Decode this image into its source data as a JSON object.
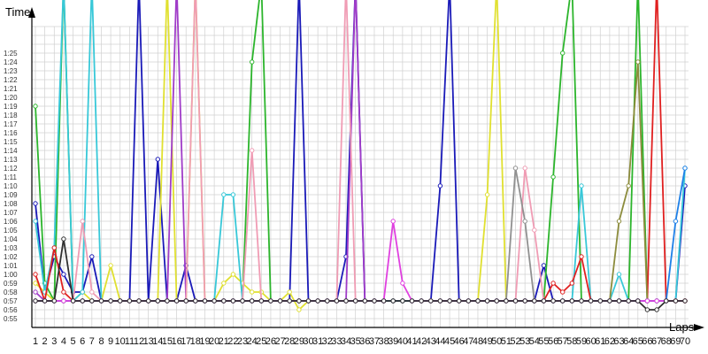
{
  "chart_data": {
    "type": "line",
    "y_axis_title": "Time",
    "x_axis_title": "Laps",
    "grid": true,
    "legend": "none",
    "y_ticks": [
      "0:55",
      "0:56",
      "0:57",
      "0:58",
      "0:59",
      "1:00",
      "1:01",
      "1:02",
      "1:03",
      "1:04",
      "1:05",
      "1:06",
      "1:07",
      "1:08",
      "1:09",
      "1:10",
      "1:11",
      "1:12",
      "1:13",
      "1:14",
      "1:15",
      "1:16",
      "1:17",
      "1:18",
      "1:19",
      "1:20",
      "1:21",
      "1:22",
      "1:23",
      "1:24",
      "1:25"
    ],
    "x_ticks": [
      "1",
      "2",
      "3",
      "4",
      "5",
      "6",
      "7",
      "8",
      "9",
      "10",
      "11",
      "12",
      "13",
      "14",
      "15",
      "16",
      "17",
      "18",
      "19",
      "20",
      "21",
      "22",
      "23",
      "24",
      "25",
      "26",
      "27",
      "28",
      "29",
      "30",
      "31",
      "32",
      "33",
      "34",
      "35",
      "36",
      "37",
      "38",
      "39",
      "40",
      "41",
      "42",
      "43",
      "44",
      "45",
      "46",
      "47",
      "48",
      "49",
      "50",
      "51",
      "52",
      "53",
      "54",
      "55",
      "56",
      "57",
      "58",
      "59",
      "60",
      "61",
      "62",
      "63",
      "64",
      "65",
      "66",
      "67",
      "68",
      "69",
      "70"
    ],
    "x_range": [
      1,
      70
    ],
    "y_range_seconds": [
      54,
      88
    ],
    "colors": {
      "grid": "#d0d0d0",
      "axis": "#000000",
      "series": [
        "#1a1ab8",
        "#2cb52c",
        "#e0e030",
        "#38c8d8",
        "#a03cc8",
        "#f09cb4",
        "#e02020",
        "#909090",
        "#8c8c3c",
        "#1e80e8",
        "#40c040",
        "#e040e0",
        "#303030",
        "#c87830"
      ]
    },
    "series": [
      {
        "color": "#1a1ab8",
        "values": [
          68,
          58,
          62,
          60,
          58,
          58,
          62,
          57,
          57,
          57,
          57,
          140,
          57,
          73,
          57,
          57,
          61,
          57,
          57,
          57,
          57,
          57,
          57,
          57,
          57,
          57,
          57,
          57,
          140,
          57,
          57,
          57,
          57,
          62,
          140,
          57,
          57,
          57,
          57,
          57,
          57,
          57,
          57,
          70,
          140,
          57,
          57,
          57,
          57,
          57,
          57,
          57,
          57,
          57,
          61,
          57,
          57,
          57,
          57,
          57,
          57,
          57,
          57,
          57,
          57,
          57,
          57,
          57,
          57,
          70
        ]
      },
      {
        "color": "#2cb52c",
        "values": [
          79,
          59,
          57,
          140,
          57,
          57,
          57,
          57,
          57,
          57,
          57,
          57,
          57,
          57,
          57,
          57,
          57,
          57,
          57,
          57,
          57,
          57,
          57,
          84,
          140,
          57,
          57,
          57,
          57,
          57,
          57,
          57,
          57,
          57,
          57,
          57,
          57,
          57,
          57,
          57,
          57,
          57,
          57,
          57,
          57,
          57,
          57,
          57,
          57,
          57,
          57,
          57,
          57,
          57,
          57,
          71,
          85,
          140,
          57,
          57,
          57,
          57,
          57,
          57,
          140,
          57,
          57,
          57,
          57,
          57
        ]
      },
      {
        "color": "#e0e030",
        "values": [
          59,
          58,
          57,
          57,
          57,
          58,
          57,
          57,
          61,
          57,
          57,
          57,
          57,
          57,
          140,
          57,
          57,
          140,
          57,
          57,
          59,
          60,
          59,
          58,
          58,
          57,
          57,
          58,
          56,
          57,
          57,
          57,
          57,
          57,
          57,
          57,
          57,
          57,
          57,
          57,
          57,
          57,
          57,
          57,
          57,
          57,
          57,
          57,
          69,
          140,
          57,
          57,
          57,
          57,
          57,
          57,
          57,
          57,
          57,
          57,
          57,
          57,
          57,
          57,
          57,
          57,
          57,
          57,
          57,
          57
        ]
      },
      {
        "color": "#38c8d8",
        "values": [
          66,
          58,
          63,
          140,
          57,
          58,
          140,
          57,
          57,
          57,
          57,
          57,
          57,
          57,
          57,
          57,
          57,
          57,
          57,
          57,
          69,
          69,
          57,
          57,
          57,
          57,
          57,
          57,
          57,
          57,
          57,
          57,
          57,
          57,
          57,
          57,
          57,
          57,
          57,
          57,
          57,
          57,
          57,
          57,
          57,
          57,
          57,
          57,
          57,
          57,
          57,
          57,
          57,
          57,
          57,
          57,
          57,
          57,
          70,
          57,
          57,
          57,
          60,
          57,
          57,
          57,
          57,
          57,
          57,
          72
        ]
      },
      {
        "color": "#a03cc8",
        "values": [
          58,
          57,
          57,
          57,
          57,
          57,
          57,
          57,
          57,
          57,
          57,
          57,
          57,
          57,
          57,
          140,
          57,
          57,
          57,
          57,
          57,
          57,
          57,
          57,
          57,
          57,
          57,
          57,
          57,
          57,
          57,
          57,
          57,
          57,
          140,
          57,
          57,
          57,
          57,
          57,
          57,
          57,
          57,
          57,
          57,
          57,
          57,
          57,
          57,
          57,
          57,
          57,
          57,
          57,
          57,
          57,
          57,
          57,
          57,
          57,
          57,
          57,
          57,
          57,
          57,
          57,
          57,
          57,
          57,
          57
        ]
      },
      {
        "color": "#f09cb4",
        "values": [
          57,
          57,
          57,
          57,
          57,
          66,
          58,
          57,
          57,
          57,
          57,
          57,
          57,
          57,
          57,
          57,
          57,
          140,
          57,
          57,
          57,
          57,
          57,
          74,
          57,
          57,
          57,
          57,
          57,
          57,
          57,
          57,
          57,
          140,
          57,
          57,
          57,
          57,
          57,
          57,
          57,
          57,
          57,
          57,
          57,
          57,
          57,
          57,
          57,
          57,
          57,
          57,
          72,
          65,
          57,
          57,
          57,
          57,
          57,
          57,
          57,
          57,
          57,
          57,
          57,
          57,
          57,
          57,
          57,
          57
        ]
      },
      {
        "color": "#e02020",
        "values": [
          60,
          57,
          63,
          58,
          57,
          57,
          57,
          57,
          57,
          57,
          57,
          57,
          57,
          57,
          57,
          57,
          57,
          57,
          57,
          57,
          57,
          57,
          57,
          57,
          57,
          57,
          57,
          57,
          57,
          57,
          57,
          57,
          57,
          57,
          57,
          57,
          57,
          57,
          57,
          57,
          57,
          57,
          57,
          57,
          57,
          57,
          57,
          57,
          57,
          57,
          57,
          57,
          57,
          57,
          57,
          59,
          58,
          59,
          62,
          57,
          57,
          57,
          57,
          57,
          57,
          57,
          140,
          57,
          57,
          57
        ]
      },
      {
        "color": "#909090",
        "values": [
          57,
          57,
          57,
          57,
          57,
          57,
          57,
          57,
          57,
          57,
          57,
          57,
          57,
          57,
          57,
          57,
          57,
          57,
          57,
          57,
          57,
          57,
          57,
          57,
          57,
          57,
          57,
          57,
          57,
          57,
          57,
          57,
          57,
          57,
          57,
          57,
          57,
          57,
          57,
          57,
          57,
          57,
          57,
          57,
          57,
          57,
          57,
          57,
          57,
          57,
          57,
          72,
          66,
          57,
          57,
          57,
          57,
          57,
          57,
          57,
          57,
          57,
          57,
          57,
          57,
          57,
          57,
          57,
          57,
          57
        ]
      },
      {
        "color": "#8c8c3c",
        "values": [
          57,
          57,
          57,
          57,
          57,
          57,
          57,
          57,
          57,
          57,
          57,
          57,
          57,
          57,
          57,
          57,
          57,
          57,
          57,
          57,
          57,
          57,
          57,
          57,
          57,
          57,
          57,
          57,
          57,
          57,
          57,
          57,
          57,
          57,
          57,
          57,
          57,
          57,
          57,
          57,
          57,
          57,
          57,
          57,
          57,
          57,
          57,
          57,
          57,
          57,
          57,
          57,
          57,
          57,
          57,
          57,
          57,
          57,
          57,
          57,
          57,
          57,
          66,
          70,
          84,
          57,
          57,
          57,
          57,
          57
        ]
      },
      {
        "color": "#1e80e8",
        "values": [
          57,
          57,
          57,
          57,
          57,
          57,
          57,
          57,
          57,
          57,
          57,
          57,
          57,
          57,
          57,
          57,
          57,
          57,
          57,
          57,
          57,
          57,
          57,
          57,
          57,
          57,
          57,
          57,
          57,
          57,
          57,
          57,
          57,
          57,
          57,
          57,
          57,
          57,
          57,
          57,
          57,
          57,
          57,
          57,
          57,
          57,
          57,
          57,
          57,
          57,
          57,
          57,
          57,
          57,
          57,
          57,
          57,
          57,
          57,
          57,
          57,
          57,
          57,
          57,
          57,
          57,
          57,
          57,
          66,
          72
        ]
      },
      {
        "color": "#e040e0",
        "values": [
          57,
          57,
          57,
          57,
          57,
          57,
          57,
          57,
          57,
          57,
          57,
          57,
          57,
          57,
          57,
          57,
          57,
          57,
          57,
          57,
          57,
          57,
          57,
          57,
          57,
          57,
          57,
          57,
          57,
          57,
          57,
          57,
          57,
          57,
          57,
          57,
          57,
          57,
          66,
          59,
          57,
          57,
          57,
          57,
          57,
          57,
          57,
          57,
          57,
          57,
          57,
          57,
          57,
          57,
          57,
          57,
          57,
          57,
          57,
          57,
          57,
          57,
          57,
          57,
          57,
          57,
          57,
          57,
          57,
          57
        ]
      },
      {
        "color": "#303030",
        "values": [
          57,
          57,
          57,
          64,
          57,
          57,
          57,
          57,
          57,
          57,
          57,
          57,
          57,
          57,
          57,
          57,
          57,
          57,
          57,
          57,
          57,
          57,
          57,
          57,
          57,
          57,
          57,
          57,
          57,
          57,
          57,
          57,
          57,
          57,
          57,
          57,
          57,
          57,
          57,
          57,
          57,
          57,
          57,
          57,
          57,
          57,
          57,
          57,
          57,
          57,
          57,
          57,
          57,
          57,
          57,
          57,
          57,
          57,
          57,
          57,
          57,
          57,
          57,
          57,
          57,
          56,
          56,
          57,
          57,
          57
        ]
      }
    ]
  }
}
